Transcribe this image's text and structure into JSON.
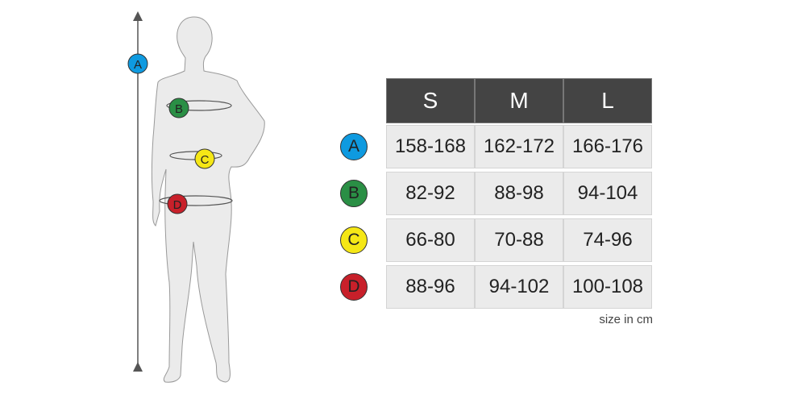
{
  "sizes": [
    "S",
    "M",
    "L"
  ],
  "rows": [
    {
      "label": "A",
      "color": "#0e9ae0",
      "values": [
        "158-168",
        "162-172",
        "166-176"
      ]
    },
    {
      "label": "B",
      "color": "#2a8f45",
      "values": [
        "82-92",
        "88-98",
        "94-104"
      ]
    },
    {
      "label": "C",
      "color": "#f5e716",
      "values": [
        "66-80",
        "70-88",
        "74-96"
      ]
    },
    {
      "label": "D",
      "color": "#c8202a",
      "values": [
        "88-96",
        "94-102",
        "100-108"
      ]
    }
  ],
  "note": "size in cm"
}
